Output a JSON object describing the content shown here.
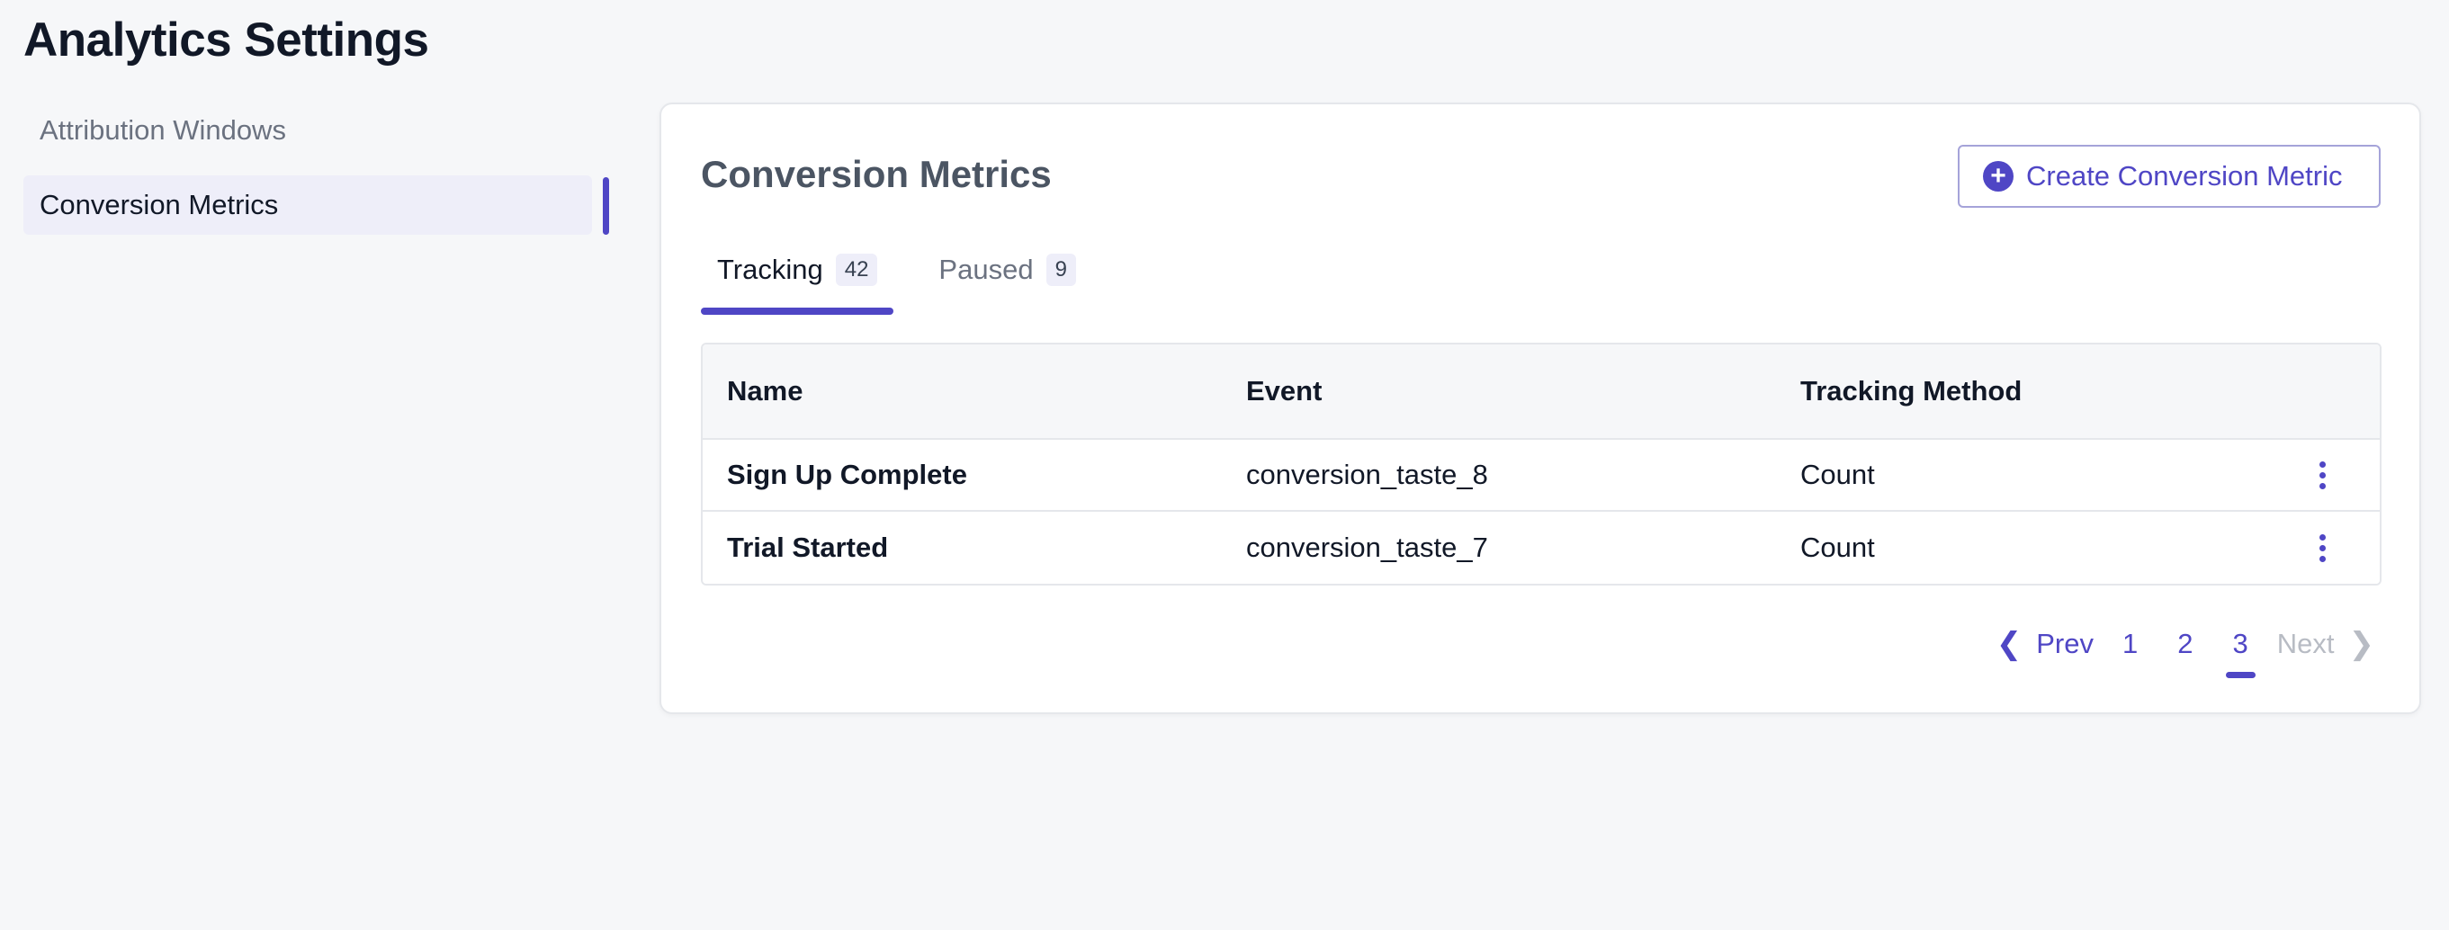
{
  "page": {
    "title": "Analytics Settings"
  },
  "sidebar": {
    "items": [
      {
        "label": "Attribution Windows",
        "active": false
      },
      {
        "label": "Conversion Metrics",
        "active": true
      }
    ]
  },
  "card": {
    "title": "Conversion Metrics",
    "create_button": "Create Conversion Metric",
    "tabs": [
      {
        "label": "Tracking",
        "count": "42",
        "active": true
      },
      {
        "label": "Paused",
        "count": "9",
        "active": false
      }
    ],
    "table": {
      "headers": [
        "Name",
        "Event",
        "Tracking Method"
      ],
      "rows": [
        {
          "name": "Sign Up Complete",
          "event": "conversion_taste_8",
          "method": "Count"
        },
        {
          "name": "Trial Started",
          "event": "conversion_taste_7",
          "method": "Count"
        }
      ]
    },
    "pagination": {
      "prev": "Prev",
      "next": "Next",
      "pages": [
        "1",
        "2",
        "3"
      ],
      "current": "3"
    }
  },
  "colors": {
    "accent": "#4f46c5",
    "active_bg": "#eeeef9"
  },
  "icons": {
    "create": "plus-circle-icon",
    "row_menu": "more-vertical-icon",
    "prev": "chevron-left-icon",
    "next": "chevron-right-icon"
  }
}
